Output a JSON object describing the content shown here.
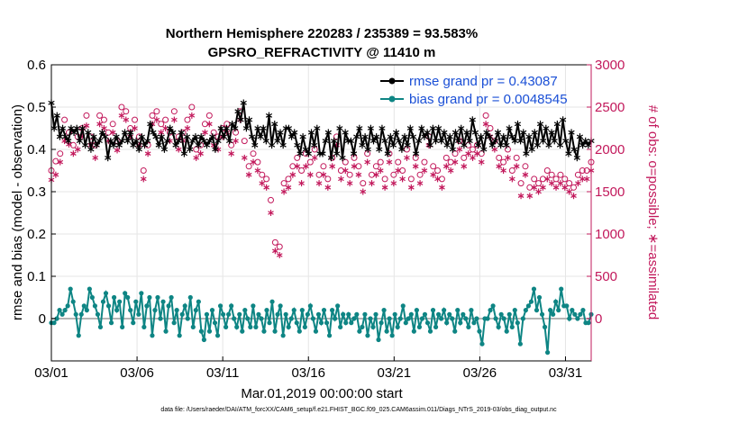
{
  "chart_data": {
    "type": "line",
    "title": "Northern Hemisphere 220283 / 235389 = 93.583%",
    "subtitle": "GPSRO_REFRACTIVITY @ 11410 m",
    "xlabel": "Mar.01,2019 00:00:00 start",
    "ylabel": "rmse and bias (model - observation)",
    "y2label": "# of obs: o=possible; ∗=assimilated",
    "footer": "data file: /Users/raeder/DAI/ATM_forcXX/CAM6_setup/f.e21.FHIST_BGC.f09_025.CAM6assim.011/Diags_NTrS_2019-03/obs_diag_output.nc",
    "xlim": [
      1,
      32.5
    ],
    "ylim": [
      -0.1,
      0.6
    ],
    "y2lim": [
      -500,
      3000
    ],
    "x_ticks": [
      1,
      6,
      11,
      16,
      21,
      26,
      31
    ],
    "x_tick_labels": [
      "03/01",
      "03/06",
      "03/11",
      "03/16",
      "03/21",
      "03/26",
      "03/31"
    ],
    "y_ticks": [
      0,
      0.1,
      0.2,
      0.3,
      0.4,
      0.5,
      0.6
    ],
    "y_tick_labels": [
      "0",
      "0.1",
      "0.2",
      "0.3",
      "0.4",
      "0.5",
      "0.6"
    ],
    "y2_ticks": [
      0,
      500,
      1000,
      1500,
      2000,
      2500,
      3000
    ],
    "y2_tick_labels": [
      "0",
      "500",
      "1000",
      "1500",
      "2000",
      "2500",
      "3000"
    ],
    "series": [
      {
        "name": "rmse grand pr = 0.43087",
        "color": "#000000",
        "marker": "asterisk",
        "axis": "left",
        "values": [
          0.51,
          0.45,
          0.48,
          0.43,
          0.45,
          0.43,
          0.42,
          0.45,
          0.44,
          0.45,
          0.42,
          0.45,
          0.41,
          0.44,
          0.4,
          0.43,
          0.41,
          0.42,
          0.44,
          0.43,
          0.38,
          0.42,
          0.41,
          0.43,
          0.41,
          0.42,
          0.44,
          0.42,
          0.44,
          0.41,
          0.42,
          0.4,
          0.43,
          0.41,
          0.42,
          0.46,
          0.44,
          0.43,
          0.41,
          0.43,
          0.4,
          0.42,
          0.45,
          0.44,
          0.41,
          0.42,
          0.44,
          0.39,
          0.43,
          0.4,
          0.42,
          0.43,
          0.41,
          0.43,
          0.42,
          0.41,
          0.42,
          0.43,
          0.4,
          0.42,
          0.45,
          0.43,
          0.45,
          0.42,
          0.46,
          0.45,
          0.49,
          0.47,
          0.51,
          0.45,
          0.47,
          0.43,
          0.41,
          0.45,
          0.43,
          0.45,
          0.42,
          0.48,
          0.41,
          0.46,
          0.42,
          0.44,
          0.41,
          0.45,
          0.45,
          0.43,
          0.44,
          0.41,
          0.39,
          0.43,
          0.4,
          0.39,
          0.44,
          0.41,
          0.45,
          0.39,
          0.39,
          0.42,
          0.44,
          0.38,
          0.42,
          0.39,
          0.45,
          0.38,
          0.44,
          0.42,
          0.42,
          0.39,
          0.43,
          0.45,
          0.41,
          0.43,
          0.4,
          0.45,
          0.42,
          0.43,
          0.4,
          0.45,
          0.42,
          0.39,
          0.43,
          0.41,
          0.44,
          0.42,
          0.4,
          0.43,
          0.41,
          0.45,
          0.43,
          0.39,
          0.42,
          0.45,
          0.43,
          0.44,
          0.41,
          0.45,
          0.42,
          0.45,
          0.42,
          0.44,
          0.41,
          0.43,
          0.4,
          0.44,
          0.42,
          0.45,
          0.41,
          0.44,
          0.42,
          0.47,
          0.44,
          0.41,
          0.43,
          0.4,
          0.44,
          0.43,
          0.41,
          0.42,
          0.44,
          0.41,
          0.43,
          0.41,
          0.45,
          0.43,
          0.42,
          0.46,
          0.42,
          0.44,
          0.39,
          0.43,
          0.4,
          0.44,
          0.41,
          0.46,
          0.42,
          0.45,
          0.41,
          0.44,
          0.42,
          0.46,
          0.41,
          0.47,
          0.42,
          0.39,
          0.44,
          0.4,
          0.38,
          0.43,
          0.41,
          0.42,
          0.41,
          0.42
        ]
      },
      {
        "name": "bias grand pr = 0.0048545",
        "color": "#0e8584",
        "marker": "circle",
        "axis": "left",
        "values": [
          -0.01,
          -0.01,
          0.0,
          0.02,
          0.01,
          0.02,
          0.03,
          0.07,
          0.04,
          0.01,
          -0.04,
          0.01,
          0.03,
          0.02,
          0.07,
          0.05,
          0.03,
          0.01,
          -0.02,
          0.04,
          0.06,
          0.03,
          -0.01,
          0.05,
          0.02,
          0.04,
          -0.02,
          0.06,
          0.05,
          0.02,
          -0.01,
          0.04,
          0.01,
          0.06,
          -0.02,
          0.03,
          0.05,
          -0.04,
          0.02,
          0.05,
          0.0,
          0.04,
          -0.03,
          0.03,
          0.05,
          -0.01,
          0.02,
          -0.04,
          0.01,
          0.03,
          0.0,
          0.05,
          -0.02,
          0.02,
          0.04,
          -0.03,
          -0.05,
          0.01,
          -0.03,
          0.02,
          -0.01,
          -0.04,
          0.03,
          0.01,
          -0.02,
          0.01,
          0.03,
          0.0,
          -0.02,
          0.01,
          -0.03,
          0.02,
          0.0,
          -0.02,
          0.03,
          -0.02,
          0.01,
          0.0,
          -0.03,
          0.02,
          -0.01,
          0.04,
          -0.03,
          0.01,
          0.03,
          -0.04,
          0.01,
          -0.02,
          0.0,
          0.02,
          -0.01,
          -0.03,
          0.02,
          -0.02,
          0.01,
          0.03,
          0.0,
          -0.03,
          0.01,
          -0.01,
          0.02,
          -0.01,
          -0.04,
          0.02,
          0.0,
          0.03,
          -0.02,
          0.01,
          -0.01,
          0.01,
          -0.01,
          0.0,
          0.01,
          -0.03,
          -0.02,
          0.01,
          -0.04,
          0.0,
          -0.02,
          0.01,
          -0.05,
          -0.01,
          0.02,
          -0.03,
          0.0,
          -0.04,
          0.01,
          -0.02,
          0.0,
          0.03,
          -0.01,
          0.0,
          0.01,
          -0.03,
          0.02,
          -0.02,
          0.0,
          0.01,
          -0.01,
          -0.03,
          0.02,
          -0.02,
          0.01,
          0.0,
          0.02,
          -0.01,
          0.01,
          0.0,
          -0.03,
          0.02,
          -0.01,
          0.01,
          0.0,
          -0.02,
          0.02,
          -0.01,
          0.0,
          -0.03,
          -0.06,
          0.0,
          0.0,
          0.02,
          0.03,
          0.0,
          -0.02,
          0.01,
          0.0,
          -0.03,
          0.01,
          -0.02,
          0.02,
          -0.01,
          -0.06,
          0.0,
          0.02,
          0.03,
          0.04,
          0.07,
          0.02,
          0.05,
          0.01,
          -0.02,
          -0.08,
          0.02,
          0.01,
          0.04,
          0.02,
          0.07,
          0.03,
          0.03,
          0.0,
          0.02,
          0.01,
          0.0,
          0.01,
          0.02,
          -0.01,
          -0.01,
          0.01
        ]
      },
      {
        "name": "possible",
        "color": "#c2185b",
        "marker": "open-circle",
        "axis": "right",
        "values": [
          1750,
          1860,
          1950,
          2350,
          2200,
          2050,
          2150,
          2250,
          2400,
          2150,
          2050,
          2400,
          2350,
          2200,
          2300,
          2100,
          2500,
          2450,
          2250,
          2350,
          2150,
          1750,
          2050,
          2400,
          2450,
          2300,
          2350,
          2200,
          2450,
          2150,
          2200,
          2350,
          2500,
          2000,
          2050,
          2300,
          2400,
          2200,
          2150,
          2250,
          2300,
          2050,
          2200,
          2450,
          2100,
          1800,
          1950,
          1850,
          1700,
          1650,
          1400,
          900,
          850,
          1600,
          1650,
          1800,
          1900,
          1750,
          1950,
          1850,
          2000,
          1700,
          1800,
          1650,
          1900,
          2150,
          1750,
          1850,
          1700,
          1900,
          1800,
          1600,
          1950,
          1700,
          1800,
          1850,
          1650,
          1950,
          1700,
          1850,
          1750,
          2000,
          1650,
          1900,
          1700,
          1850,
          2150,
          1800,
          1750,
          1650,
          1900,
          1850,
          1950,
          2100,
          1900,
          2050,
          2000,
          2050,
          1950,
          2400,
          2250,
          2100,
          1900,
          1850,
          2000,
          1750,
          1900,
          1600,
          1800,
          1550,
          1650,
          1600,
          1650,
          1750,
          1700,
          1650,
          1700,
          1650,
          1600,
          1550,
          1700,
          1750,
          1750,
          1850
        ]
      },
      {
        "name": "assimilated",
        "color": "#c2185b",
        "marker": "asterisk",
        "axis": "right",
        "values": [
          1640,
          1700,
          1850,
          2100,
          2060,
          1950,
          2000,
          2150,
          2280,
          2050,
          1900,
          2300,
          2250,
          2100,
          2200,
          1990,
          2400,
          2350,
          2150,
          2250,
          2050,
          1650,
          1950,
          2300,
          2350,
          2200,
          2250,
          2100,
          2350,
          2000,
          2100,
          2250,
          2400,
          1900,
          1950,
          2200,
          2300,
          2050,
          2000,
          2150,
          2200,
          1950,
          2100,
          2350,
          1900,
          1700,
          1850,
          1750,
          1600,
          1550,
          1250,
          800,
          750,
          1500,
          1550,
          1700,
          1800,
          1600,
          1800,
          1700,
          1900,
          1600,
          1700,
          1550,
          1800,
          2050,
          1650,
          1750,
          1600,
          1800,
          1700,
          1500,
          1850,
          1600,
          1700,
          1750,
          1550,
          1850,
          1600,
          1750,
          1650,
          1900,
          1550,
          1800,
          1600,
          1750,
          2050,
          1700,
          1650,
          1550,
          1800,
          1750,
          1850,
          2000,
          1800,
          1950,
          1900,
          1950,
          1850,
          2300,
          2150,
          2000,
          1800,
          1750,
          1900,
          1650,
          1800,
          1450,
          1700,
          1450,
          1550,
          1500,
          1550,
          1650,
          1600,
          1550,
          1600,
          1550,
          1500,
          1450,
          1600,
          1650,
          1650,
          1750
        ]
      }
    ],
    "legend_position": "top-right",
    "grid": true,
    "zero_line": true
  }
}
